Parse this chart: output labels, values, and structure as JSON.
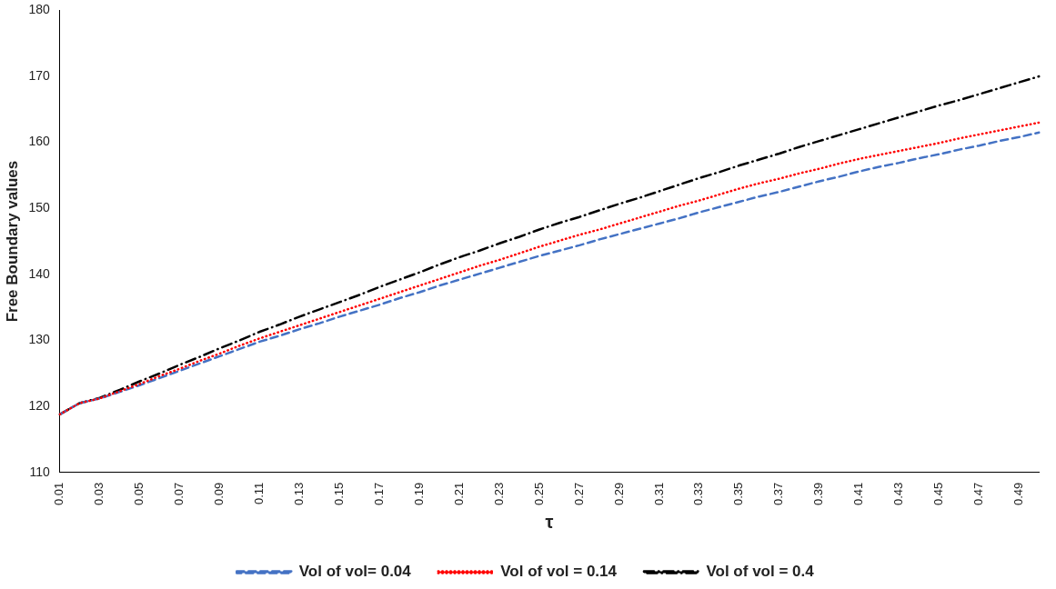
{
  "chart_data": {
    "type": "line",
    "xlabel": "τ",
    "ylabel": "Free Boundary values",
    "categories": [
      "0.01",
      null,
      "0.03",
      null,
      "0.05",
      null,
      "0.07",
      null,
      "0.09",
      null,
      "0.11",
      null,
      "0.13",
      null,
      "0.15",
      null,
      "0.17",
      null,
      "0.19",
      null,
      "0.21",
      null,
      "0.23",
      null,
      "0.25",
      null,
      "0.27",
      null,
      "0.29",
      null,
      "0.31",
      null,
      "0.33",
      null,
      "0.35",
      null,
      "0.37",
      null,
      "0.39",
      null,
      "0.41",
      null,
      "0.43",
      null,
      "0.45",
      null,
      "0.47",
      null,
      "0.49",
      null
    ],
    "series": [
      {
        "name": "Vol of vol= 0.04",
        "color": "#4472c4",
        "line_style": "dashed",
        "values": [
          118.8,
          120.5,
          121.2,
          122.2,
          123.2,
          124.3,
          125.4,
          126.5,
          127.6,
          128.7,
          129.8,
          130.7,
          131.7,
          132.6,
          133.6,
          134.5,
          135.4,
          136.4,
          137.3,
          138.3,
          139.2,
          140.1,
          141.0,
          141.9,
          142.8,
          143.6,
          144.4,
          145.3,
          146.1,
          146.9,
          147.7,
          148.5,
          149.4,
          150.2,
          151.0,
          151.8,
          152.5,
          153.3,
          154.1,
          154.8,
          155.6,
          156.3,
          156.9,
          157.6,
          158.2,
          158.9,
          159.5,
          160.2,
          160.8,
          161.5
        ]
      },
      {
        "name": "Vol of vol = 0.14",
        "color": "#ff0000",
        "line_style": "dotted",
        "values": [
          118.8,
          120.5,
          121.2,
          122.3,
          123.4,
          124.6,
          125.7,
          126.9,
          128.0,
          129.2,
          130.3,
          131.3,
          132.3,
          133.3,
          134.3,
          135.3,
          136.3,
          137.3,
          138.3,
          139.3,
          140.3,
          141.3,
          142.2,
          143.2,
          144.2,
          145.1,
          146.0,
          146.8,
          147.7,
          148.6,
          149.5,
          150.4,
          151.2,
          152.1,
          153.0,
          153.8,
          154.5,
          155.3,
          156.0,
          156.8,
          157.5,
          158.1,
          158.7,
          159.3,
          159.9,
          160.6,
          161.2,
          161.8,
          162.4,
          163.0
        ]
      },
      {
        "name": "Vol of vol = 0.4",
        "color": "#000000",
        "line_style": "dashdot",
        "values": [
          118.8,
          120.5,
          121.3,
          122.5,
          123.8,
          125.0,
          126.3,
          127.5,
          128.8,
          130.0,
          131.3,
          132.4,
          133.6,
          134.7,
          135.8,
          136.9,
          138.1,
          139.2,
          140.3,
          141.5,
          142.6,
          143.6,
          144.7,
          145.7,
          146.8,
          147.8,
          148.7,
          149.7,
          150.7,
          151.6,
          152.6,
          153.6,
          154.6,
          155.5,
          156.5,
          157.4,
          158.3,
          159.3,
          160.2,
          161.1,
          162.0,
          162.9,
          163.8,
          164.7,
          165.6,
          166.4,
          167.3,
          168.2,
          169.1,
          170.0
        ]
      }
    ],
    "ylim": [
      110,
      180
    ],
    "yticks": [
      110,
      120,
      130,
      140,
      150,
      160,
      170,
      180
    ],
    "grid": false,
    "legend": "bottom",
    "marker": "none"
  }
}
